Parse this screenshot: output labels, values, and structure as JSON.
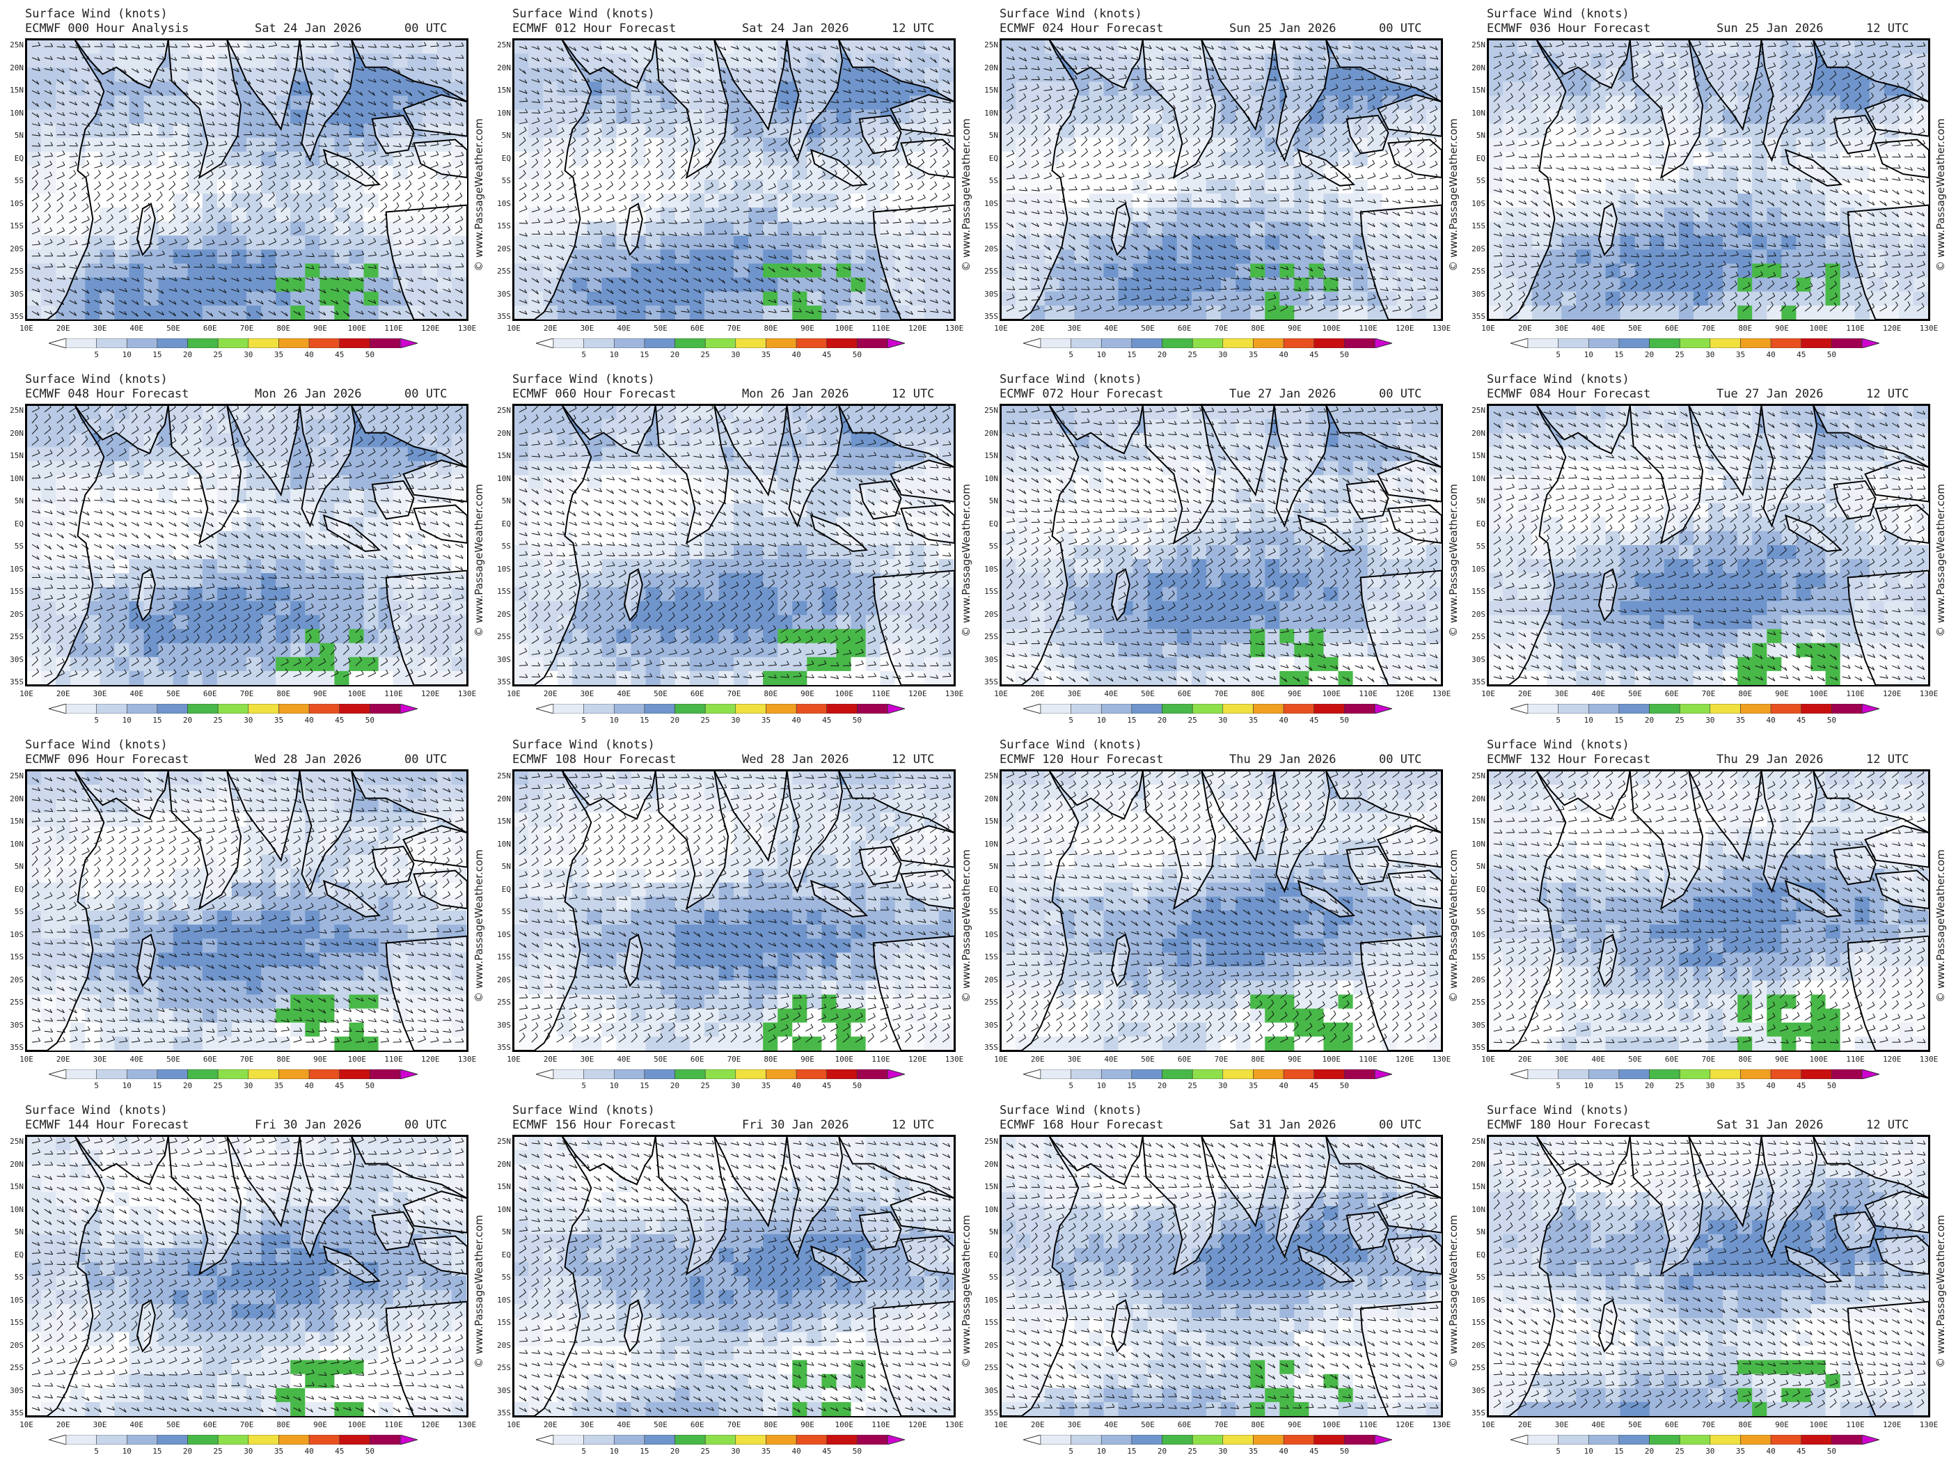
{
  "colorbar": {
    "ticks": [
      "5",
      "10",
      "15",
      "20",
      "25",
      "30",
      "35",
      "40",
      "45",
      "50"
    ],
    "colors": [
      "#ffffff",
      "#e6ecf5",
      "#c6d5ea",
      "#9fb7dd",
      "#6f95cc",
      "#48b848",
      "#8ee04a",
      "#f0e040",
      "#f0a020",
      "#e85020",
      "#c81010",
      "#a00050",
      "#d000d0"
    ]
  },
  "credit": "© www.PassageWeather.com",
  "lat_labels": [
    "25N",
    "20N",
    "15N",
    "10N",
    "5N",
    "EQ",
    "5S",
    "10S",
    "15S",
    "20S",
    "25S",
    "30S",
    "35S"
  ],
  "lon_labels": [
    "10E",
    "20E",
    "30E",
    "40E",
    "50E",
    "60E",
    "70E",
    "80E",
    "90E",
    "100E",
    "110E",
    "120E",
    "130E"
  ],
  "panels": [
    {
      "title": "Surface Wind (knots)",
      "model": "ECMWF 000 Hour Analysis",
      "date": "Sat 24 Jan 2026",
      "utc": "00 UTC"
    },
    {
      "title": "Surface Wind (knots)",
      "model": "ECMWF 012 Hour Forecast",
      "date": "Sat 24 Jan 2026",
      "utc": "12 UTC"
    },
    {
      "title": "Surface Wind (knots)",
      "model": "ECMWF 024 Hour Forecast",
      "date": "Sun 25 Jan 2026",
      "utc": "00 UTC"
    },
    {
      "title": "Surface Wind (knots)",
      "model": "ECMWF 036 Hour Forecast",
      "date": "Sun 25 Jan 2026",
      "utc": "12 UTC"
    },
    {
      "title": "Surface Wind (knots)",
      "model": "ECMWF 048 Hour Forecast",
      "date": "Mon 26 Jan 2026",
      "utc": "00 UTC"
    },
    {
      "title": "Surface Wind (knots)",
      "model": "ECMWF 060 Hour Forecast",
      "date": "Mon 26 Jan 2026",
      "utc": "12 UTC"
    },
    {
      "title": "Surface Wind (knots)",
      "model": "ECMWF 072 Hour Forecast",
      "date": "Tue 27 Jan 2026",
      "utc": "00 UTC"
    },
    {
      "title": "Surface Wind (knots)",
      "model": "ECMWF 084 Hour Forecast",
      "date": "Tue 27 Jan 2026",
      "utc": "12 UTC"
    },
    {
      "title": "Surface Wind (knots)",
      "model": "ECMWF 096 Hour Forecast",
      "date": "Wed 28 Jan 2026",
      "utc": "00 UTC"
    },
    {
      "title": "Surface Wind (knots)",
      "model": "ECMWF 108 Hour Forecast",
      "date": "Wed 28 Jan 2026",
      "utc": "12 UTC"
    },
    {
      "title": "Surface Wind (knots)",
      "model": "ECMWF 120 Hour Forecast",
      "date": "Thu 29 Jan 2026",
      "utc": "00 UTC"
    },
    {
      "title": "Surface Wind (knots)",
      "model": "ECMWF 132 Hour Forecast",
      "date": "Thu 29 Jan 2026",
      "utc": "12 UTC"
    },
    {
      "title": "Surface Wind (knots)",
      "model": "ECMWF 144 Hour Forecast",
      "date": "Fri 30 Jan 2026",
      "utc": "00 UTC"
    },
    {
      "title": "Surface Wind (knots)",
      "model": "ECMWF 156 Hour Forecast",
      "date": "Fri 30 Jan 2026",
      "utc": "12 UTC"
    },
    {
      "title": "Surface Wind (knots)",
      "model": "ECMWF 168 Hour Forecast",
      "date": "Sat 31 Jan 2026",
      "utc": "00 UTC"
    },
    {
      "title": "Surface Wind (knots)",
      "model": "ECMWF 180 Hour Forecast",
      "date": "Sat 31 Jan 2026",
      "utc": "12 UTC"
    }
  ]
}
